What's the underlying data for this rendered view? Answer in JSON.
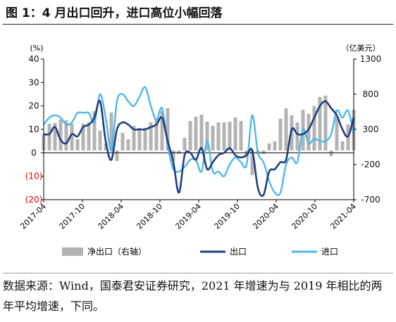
{
  "figure": {
    "title": "图 1：4 月出口回升，进口高位小幅回落",
    "source_note": "数据来源：Wind，国泰君安证券研究，2021 年增速为与 2019 年相比的两年平均增速，下同。"
  },
  "chart_data": {
    "type": "bar+line",
    "left_axis": {
      "unit": "(%)",
      "ylim": [
        -20,
        40
      ],
      "ticks": [
        "40",
        "30",
        "20",
        "10",
        "0",
        "(10)",
        "(20)"
      ],
      "negative_tick_color": "#e00000"
    },
    "right_axis": {
      "unit": "（亿美元）",
      "ylim": [
        -700,
        1300
      ],
      "ticks": [
        "1300",
        "800",
        "300",
        "-200",
        "-700"
      ]
    },
    "x_ticks": [
      "2017-04",
      "2017-10",
      "2018-04",
      "2018-10",
      "2019-04",
      "2019-10",
      "2020-04",
      "2020-10",
      "2021-04"
    ],
    "x_range": [
      "2017-04",
      "2021-04"
    ],
    "colors": {
      "net_exports": "#b3b3b3",
      "exports": "#1f3f7f",
      "imports": "#4fb8e8"
    },
    "series": [
      {
        "name": "净出口（右轴）",
        "type": "bar",
        "axis": "right",
        "values": [
          230,
          380,
          390,
          440,
          430,
          380,
          160,
          380,
          400,
          560,
          280,
          100,
          540,
          -150,
          250,
          160,
          350,
          320,
          320,
          400,
          460,
          560,
          600,
          -150,
          -50,
          180,
          420,
          480,
          510,
          410,
          350,
          400,
          400,
          410,
          470,
          420,
          -100,
          -350,
          -50,
          -50,
          100,
          130,
          450,
          600,
          500,
          400,
          580,
          520,
          630,
          760,
          780,
          -80,
          470,
          130,
          370,
          580
        ]
      },
      {
        "name": "出口",
        "type": "line",
        "axis": "left",
        "values": [
          8,
          8,
          11,
          5.5,
          4,
          8,
          7,
          11,
          12,
          15,
          22,
          5,
          -3,
          10,
          13,
          12,
          10,
          10,
          10,
          11,
          12,
          15,
          5,
          -4,
          -17,
          -1,
          0,
          -3,
          2,
          -7,
          -4,
          -1,
          0,
          2,
          -1,
          -2,
          -1,
          1,
          -15,
          -18,
          -8,
          -7,
          -4,
          -3,
          10,
          8,
          8,
          10,
          15,
          20,
          22,
          19,
          16,
          10,
          7,
          15
        ]
      },
      {
        "name": "进口",
        "type": "line",
        "axis": "left",
        "values": [
          12,
          15,
          16,
          15,
          12,
          13,
          17,
          17,
          17,
          13,
          25,
          15,
          1,
          22,
          25,
          22,
          20,
          24,
          28,
          20,
          14,
          19,
          3,
          -7,
          -8,
          -6,
          -3,
          -3,
          -8,
          5,
          -8,
          -8,
          -10,
          -5,
          -2,
          -4,
          -5,
          16,
          0,
          -4,
          -12,
          -17,
          -17,
          -5,
          -2,
          -4,
          10,
          4,
          6,
          5,
          5,
          8,
          18,
          15,
          18,
          8
        ]
      }
    ]
  }
}
